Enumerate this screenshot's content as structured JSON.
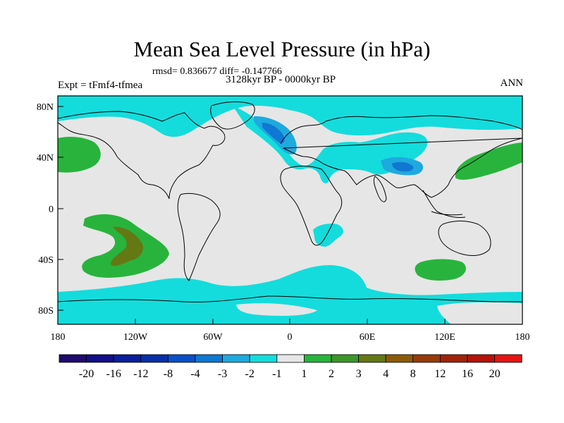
{
  "title": "Mean Sea Level Pressure (in hPa)",
  "stats": "rmsd= 0.836677 diff= -0.147766",
  "period": "3128kyr BP - 0000kyr BP",
  "experiment": "Expt = tFmf4-tfmea",
  "season": "ANN",
  "map": {
    "lat_labels": [
      "80N",
      "40N",
      "0",
      "40S",
      "80S"
    ],
    "lon_labels": [
      "180",
      "120W",
      "60W",
      "0",
      "60E",
      "120E",
      "180"
    ]
  },
  "colorbar": {
    "labels": [
      "-20",
      "-16",
      "-12",
      "-8",
      "-4",
      "-3",
      "-2",
      "-1",
      "1",
      "2",
      "3",
      "4",
      "8",
      "12",
      "16",
      "20"
    ],
    "colors": [
      "#1f0a6e",
      "#120f8a",
      "#0a1e9a",
      "#0a2ea8",
      "#0a50c8",
      "#0f78d2",
      "#1eaade",
      "#14dcdc",
      "#e6e6e6",
      "#28b43c",
      "#3c9628",
      "#647814",
      "#8c5a0a",
      "#963c0a",
      "#a0230a",
      "#b4140a",
      "#e61414"
    ]
  },
  "colors": {
    "background_field": "#e6e6e6",
    "neg_small": "#14dcdc",
    "neg_mid": "#1eaade",
    "neg_strong": "#0f78d2",
    "pos_small": "#28b43c",
    "pos_mid": "#647814"
  }
}
